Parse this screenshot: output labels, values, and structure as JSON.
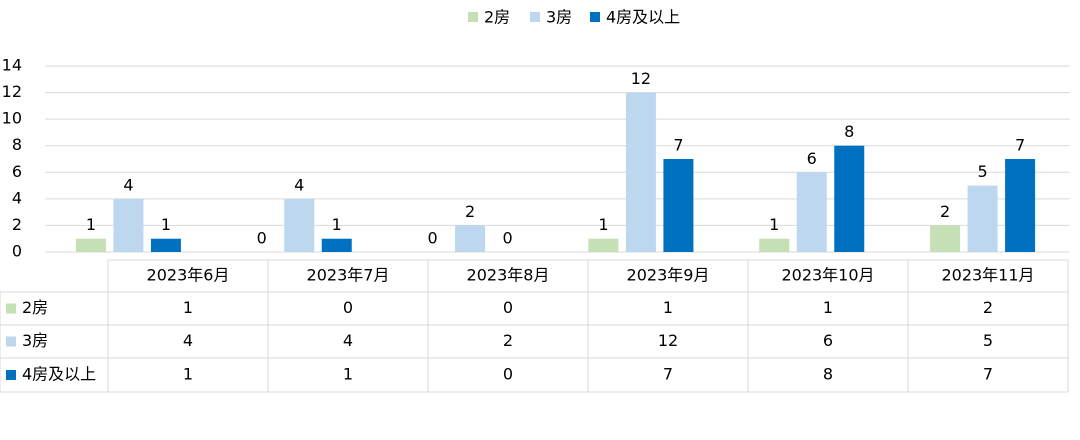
{
  "chart_data": {
    "type": "bar",
    "categories": [
      "2023年6月",
      "2023年7月",
      "2023年8月",
      "2023年9月",
      "2023年10月",
      "2023年11月"
    ],
    "series": [
      {
        "name": "2房",
        "color": "#c5e0b4",
        "values": [
          1,
          0,
          0,
          1,
          1,
          2
        ]
      },
      {
        "name": "3房",
        "color": "#bdd7ee",
        "values": [
          4,
          4,
          2,
          12,
          6,
          5
        ]
      },
      {
        "name": "4房及以上",
        "color": "#0070c0",
        "values": [
          1,
          1,
          0,
          7,
          8,
          7
        ]
      }
    ],
    "ylim": [
      0,
      14
    ],
    "yticks": [
      0,
      2,
      4,
      6,
      8,
      10,
      12,
      14
    ],
    "grid": true,
    "legend": "top",
    "data_table": true
  }
}
